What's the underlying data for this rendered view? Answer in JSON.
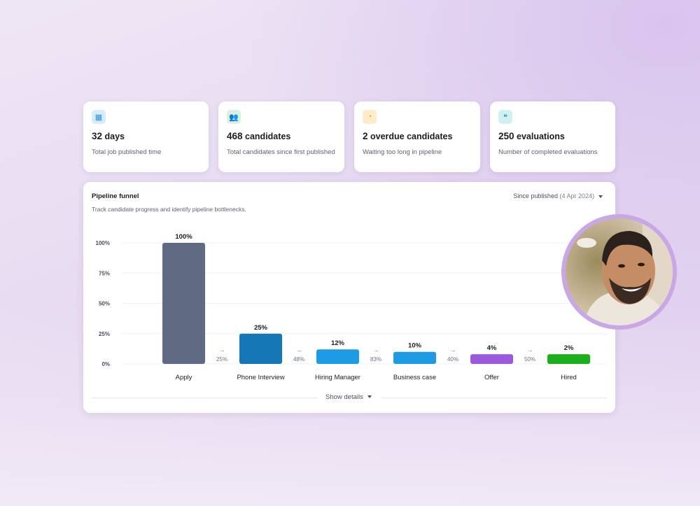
{
  "stats": [
    {
      "icon": "calendar-icon",
      "icon_bg": "#d6ebfb",
      "icon_color": "#2a8fdc",
      "value": "32",
      "unit": "days",
      "desc": "Total job published time"
    },
    {
      "icon": "users-icon",
      "icon_bg": "#d8f3dc",
      "icon_color": "#1ea335",
      "value": "468",
      "unit": "candidates",
      "desc": "Total candidates since first published"
    },
    {
      "icon": "overdue-user-icon",
      "icon_bg": "#fdebc9",
      "icon_color": "#e8a21d",
      "value": "2",
      "unit": "overdue candidates",
      "desc": "Waiting too long in pipeline"
    },
    {
      "icon": "thumbs-icon",
      "icon_bg": "#d3f0f1",
      "icon_color": "#139aa3",
      "value": "250",
      "unit": "evaluations",
      "desc": "Number of completed evaluations"
    }
  ],
  "panel": {
    "title": "Pipeline funnel",
    "subtitle": "Track candidate progress and identify pipeline bottlenecks.",
    "filter_label": "Since published",
    "filter_date": "(4 Apr 2024)",
    "show_details": "Show details"
  },
  "chart_data": {
    "type": "bar",
    "categories": [
      "Apply",
      "Phone Interview",
      "Hiring Manager",
      "Business case",
      "Offer",
      "Hired"
    ],
    "values": [
      100,
      25,
      12,
      10,
      4,
      2
    ],
    "value_labels": [
      "100%",
      "25%",
      "12%",
      "10%",
      "4%",
      "2%"
    ],
    "colors": [
      "#5e6b82",
      "#1577b5",
      "#1d9be4",
      "#1d9be4",
      "#9b59de",
      "#1bb01b"
    ],
    "conversions": [
      "25%",
      "48%",
      "83%",
      "40%",
      "50%"
    ],
    "yticks": [
      "0%",
      "25%",
      "50%",
      "75%",
      "100%"
    ],
    "ylim": [
      0,
      100
    ],
    "grid": true
  },
  "avatar": {
    "alt": "candidate photo"
  }
}
